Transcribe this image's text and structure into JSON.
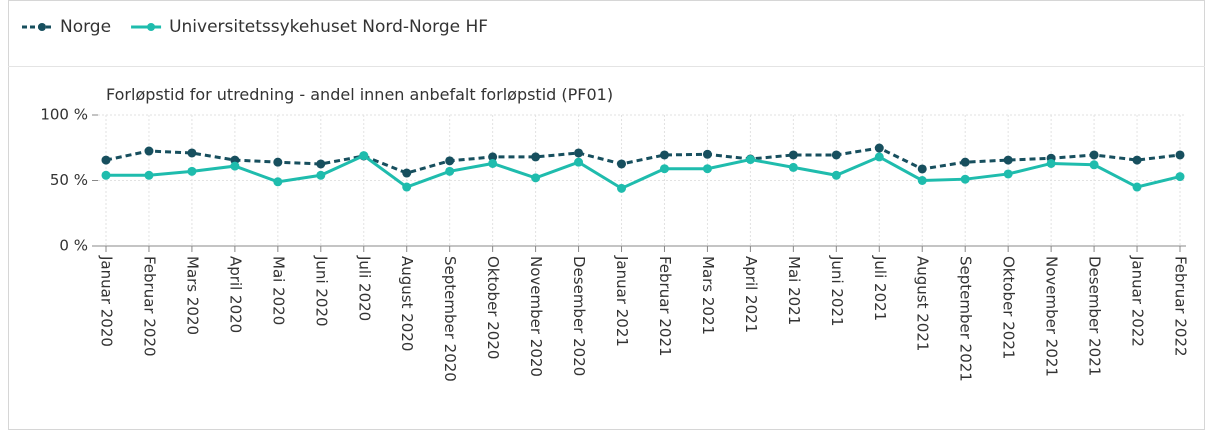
{
  "chart_data": {
    "type": "line",
    "title": "Forløpstid for utredning - andel innen anbefalt forløpstid (PF01)",
    "categories": [
      "Januar 2020",
      "Februar 2020",
      "Mars 2020",
      "April 2020",
      "Mai 2020",
      "Juni 2020",
      "Juli 2020",
      "August 2020",
      "September 2020",
      "Oktober 2020",
      "November 2020",
      "Desember 2020",
      "Januar 2021",
      "Februar 2021",
      "Mars 2021",
      "April 2021",
      "Mai 2021",
      "Juni 2021",
      "Juli 2021",
      "August 2021",
      "September 2021",
      "Oktober 2021",
      "November 2021",
      "Desember 2021",
      "Januar 2022",
      "Februar 2022"
    ],
    "series": [
      {
        "name": "Norge",
        "color": "#174f5e",
        "dashed": true,
        "values": [
          65.6,
          72.5,
          71,
          65.6,
          64,
          62.6,
          68.7,
          55.7,
          65,
          68,
          68,
          71,
          62.6,
          69.5,
          70,
          66.4,
          69.5,
          69.5,
          74.8,
          58.8,
          64,
          65.6,
          67,
          69.5,
          65.6,
          69.5
        ]
      },
      {
        "name": "Universitetssykehuset Nord-Norge HF",
        "color": "#1fbcad",
        "dashed": false,
        "values": [
          54,
          54,
          57,
          61,
          49,
          54,
          69,
          45,
          57,
          63,
          52,
          64,
          44,
          59,
          59,
          66,
          60,
          54,
          68,
          50,
          51,
          55,
          63,
          62,
          45,
          53
        ]
      }
    ],
    "ylim": [
      0,
      100
    ],
    "yticks": [
      {
        "value": 0,
        "label": "0 %"
      },
      {
        "value": 50,
        "label": "50 %"
      },
      {
        "value": 100,
        "label": "100 %"
      }
    ],
    "grid": true
  }
}
